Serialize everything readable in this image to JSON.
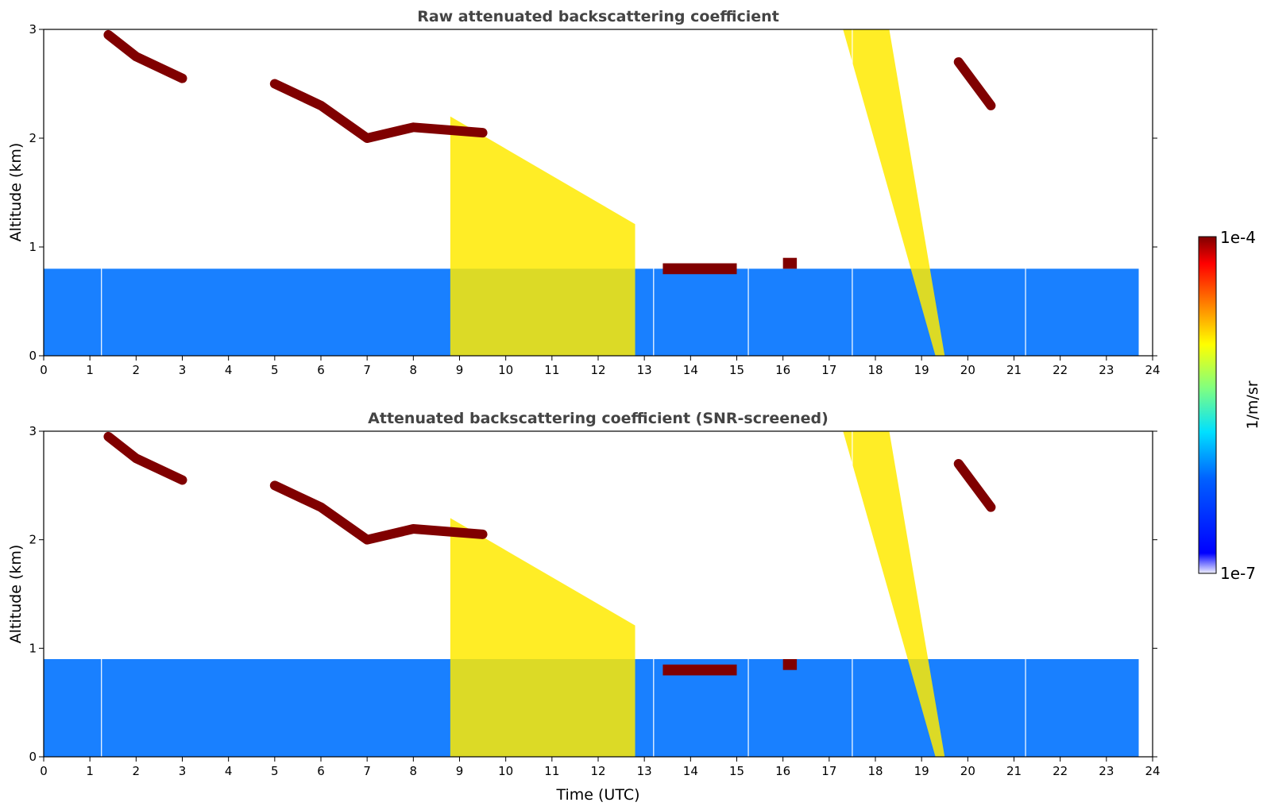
{
  "chart_data": [
    {
      "type": "heatmap",
      "title": "Raw attenuated backscattering coefficient",
      "xlabel": "",
      "ylabel": "Altitude (km)",
      "xlim": [
        0,
        24
      ],
      "ylim": [
        0,
        3
      ],
      "x_ticks": [
        0,
        1,
        2,
        3,
        4,
        5,
        6,
        7,
        8,
        9,
        10,
        11,
        12,
        13,
        14,
        15,
        16,
        17,
        18,
        19,
        20,
        21,
        22,
        23,
        24
      ],
      "y_ticks": [
        0,
        1,
        2,
        3
      ],
      "data_end_time": 23.7,
      "features": [
        {
          "kind": "boundary_layer",
          "t_start": 0,
          "t_end": 23.7,
          "alt_top": 0.8,
          "level": 0.3
        },
        {
          "kind": "aerosol_plume",
          "t_start": 8.8,
          "t_end": 12.8,
          "alt_bottom": 0,
          "alt_top": 2.2,
          "level": 0.7
        },
        {
          "kind": "cloud_layer",
          "path": [
            [
              1.4,
              2.95
            ],
            [
              2.0,
              2.75
            ],
            [
              3.0,
              2.55
            ]
          ],
          "level": 1.0
        },
        {
          "kind": "cloud_layer",
          "path": [
            [
              5.0,
              2.5
            ],
            [
              6.0,
              2.3
            ],
            [
              7.0,
              2.0
            ],
            [
              8.0,
              2.1
            ],
            [
              9.5,
              2.05
            ]
          ],
          "level": 1.0
        },
        {
          "kind": "low_cloud",
          "t_start": 13.4,
          "t_end": 15.0,
          "alt": 0.8,
          "level": 1.0
        },
        {
          "kind": "low_cloud",
          "t_start": 16.0,
          "t_end": 16.3,
          "alt": 0.85,
          "level": 1.0
        },
        {
          "kind": "falling_streak",
          "t_start": 17.3,
          "t_end": 19.5,
          "alt_bottom": 0,
          "alt_top": 3,
          "level": 0.7
        },
        {
          "kind": "cloud_layer",
          "path": [
            [
              19.8,
              2.7
            ],
            [
              20.5,
              2.3
            ]
          ],
          "level": 1.0
        }
      ],
      "gaps_utc": [
        1.25,
        13.2,
        15.25,
        17.5,
        21.25
      ]
    },
    {
      "type": "heatmap",
      "title": "Attenuated backscattering coefficient (SNR-screened)",
      "xlabel": "Time (UTC)",
      "ylabel": "Altitude (km)",
      "xlim": [
        0,
        24
      ],
      "ylim": [
        0,
        3
      ],
      "x_ticks": [
        0,
        1,
        2,
        3,
        4,
        5,
        6,
        7,
        8,
        9,
        10,
        11,
        12,
        13,
        14,
        15,
        16,
        17,
        18,
        19,
        20,
        21,
        22,
        23,
        24
      ],
      "y_ticks": [
        0,
        1,
        2,
        3
      ],
      "data_end_time": 23.7,
      "features": [
        {
          "kind": "boundary_layer",
          "t_start": 0,
          "t_end": 23.7,
          "alt_top": 0.9,
          "level": 0.3
        },
        {
          "kind": "aerosol_plume",
          "t_start": 8.8,
          "t_end": 12.8,
          "alt_bottom": 0,
          "alt_top": 2.2,
          "level": 0.7
        },
        {
          "kind": "cloud_layer",
          "path": [
            [
              1.4,
              2.95
            ],
            [
              2.0,
              2.75
            ],
            [
              3.0,
              2.55
            ]
          ],
          "level": 1.0
        },
        {
          "kind": "cloud_layer",
          "path": [
            [
              5.0,
              2.5
            ],
            [
              6.0,
              2.3
            ],
            [
              7.0,
              2.0
            ],
            [
              8.0,
              2.1
            ],
            [
              9.5,
              2.05
            ]
          ],
          "level": 1.0
        },
        {
          "kind": "low_cloud",
          "t_start": 13.4,
          "t_end": 15.0,
          "alt": 0.8,
          "level": 1.0
        },
        {
          "kind": "low_cloud",
          "t_start": 16.0,
          "t_end": 16.3,
          "alt": 0.85,
          "level": 1.0
        },
        {
          "kind": "falling_streak",
          "t_start": 17.3,
          "t_end": 19.5,
          "alt_bottom": 0,
          "alt_top": 3,
          "level": 0.7
        },
        {
          "kind": "cloud_layer",
          "path": [
            [
              19.8,
              2.7
            ],
            [
              20.5,
              2.3
            ]
          ],
          "level": 1.0
        }
      ],
      "gaps_utc": [
        1.25,
        13.2,
        15.25,
        17.5,
        21.25
      ]
    }
  ],
  "colorbar": {
    "label": "1/m/sr",
    "max_label": "1e-4",
    "min_label": "1e-7",
    "scale": "log",
    "colormap": "jet",
    "stops": [
      "#f0f0ff",
      "#0000ff",
      "#0080ff",
      "#00e0ff",
      "#80ff80",
      "#ffff00",
      "#ff8000",
      "#ff0000",
      "#800000"
    ]
  }
}
